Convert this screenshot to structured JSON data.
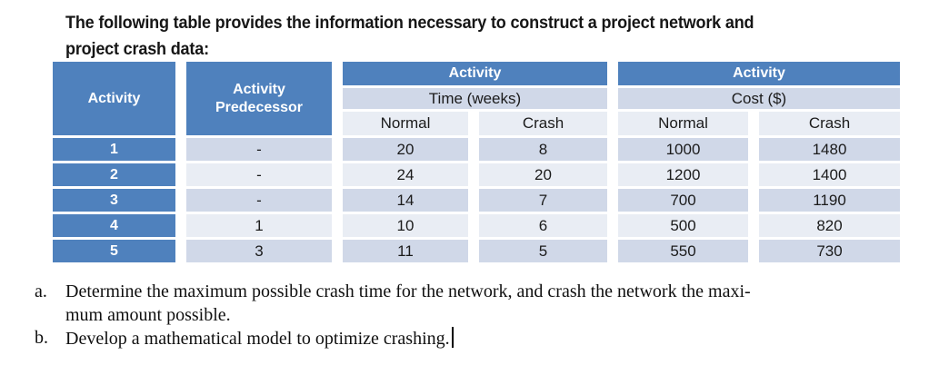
{
  "heading": {
    "lines": [
      "The following table provides the information necessary to construct a project network and",
      "project crash data:"
    ]
  },
  "table": {
    "colors": {
      "header_blue": "#4f81bd",
      "band_dark": "#d0d8e8",
      "band_light": "#e9edf4",
      "border_white": "#ffffff"
    },
    "header": {
      "activity": "Activity",
      "predecessor": "Activity Predecessor",
      "time_group": "Activity",
      "time_sub": "Time (weeks)",
      "cost_group": "Activity",
      "cost_sub": "Cost ($)",
      "normal": "Normal",
      "crash": "Crash"
    },
    "rows": [
      {
        "activity": "1",
        "predecessor": "-",
        "time_normal": "20",
        "time_crash": "8",
        "cost_normal": "1000",
        "cost_crash": "1480"
      },
      {
        "activity": "2",
        "predecessor": "-",
        "time_normal": "24",
        "time_crash": "20",
        "cost_normal": "1200",
        "cost_crash": "1400"
      },
      {
        "activity": "3",
        "predecessor": "-",
        "time_normal": "14",
        "time_crash": "7",
        "cost_normal": "700",
        "cost_crash": "1190"
      },
      {
        "activity": "4",
        "predecessor": "1",
        "time_normal": "10",
        "time_crash": "6",
        "cost_normal": "500",
        "cost_crash": "820"
      },
      {
        "activity": "5",
        "predecessor": "3",
        "time_normal": "11",
        "time_crash": "5",
        "cost_normal": "550",
        "cost_crash": "730"
      }
    ]
  },
  "questions": [
    {
      "label": "a.",
      "lines": [
        "Determine the maximum possible crash time for the network, and crash the network the maxi-",
        "mum amount possible."
      ]
    },
    {
      "label": "b.",
      "lines": [
        "Develop a mathematical model to optimize crashing."
      ]
    }
  ]
}
